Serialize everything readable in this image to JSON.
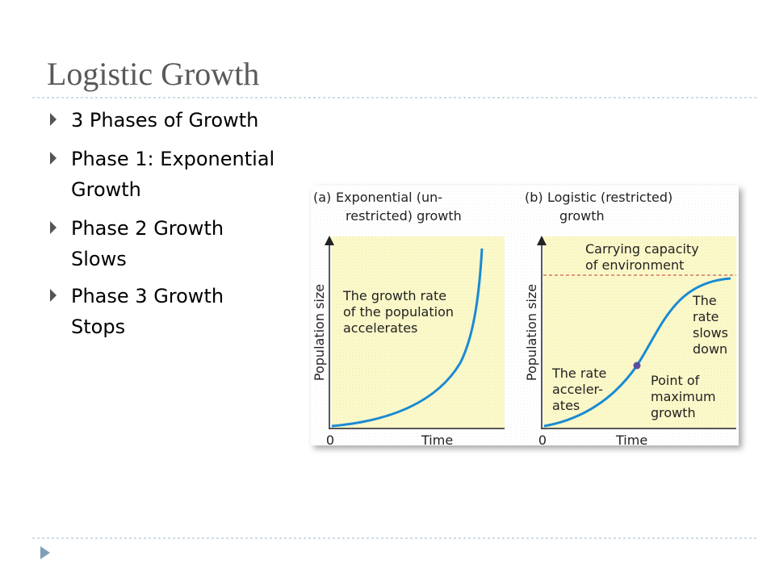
{
  "slide": {
    "title": "Logistic Growth",
    "bullets": [
      {
        "lines": [
          "3 Phases of Growth"
        ]
      },
      {
        "lines": [
          "Phase 1:  Exponential",
          "Growth"
        ]
      },
      {
        "lines": [
          "Phase 2 Growth",
          "Slows"
        ]
      },
      {
        "lines": [
          "Phase 3 Growth",
          "Stops"
        ]
      }
    ]
  },
  "figure": {
    "panel_a": {
      "label": "(a)",
      "title_lines": [
        "Exponential (un-",
        "restricted) growth"
      ],
      "y_axis": "Population size",
      "x_axis": "Time",
      "origin": "0",
      "annotation_lines": [
        "The growth rate",
        "of the population",
        "accelerates"
      ]
    },
    "panel_b": {
      "label": "(b)",
      "title_lines": [
        "Logistic (restricted)",
        "growth"
      ],
      "y_axis": "Population size",
      "x_axis": "Time",
      "origin": "0",
      "capacity_lines": [
        "Carrying capacity",
        "of environment"
      ],
      "slows_lines": [
        "The",
        "rate",
        "slows",
        "down"
      ],
      "accel_lines": [
        "The rate",
        "acceler-",
        "ates"
      ],
      "point_lines": [
        "Point of",
        "maximum",
        "growth"
      ]
    }
  }
}
